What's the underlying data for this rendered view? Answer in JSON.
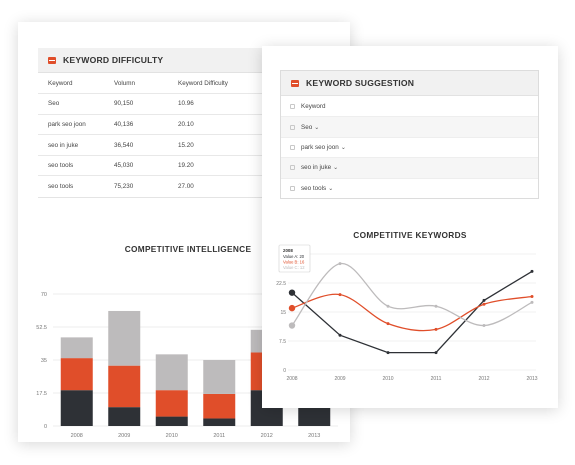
{
  "keyword_difficulty": {
    "title": "KEYWORD DIFFICULTY",
    "icon": "table-icon",
    "columns": [
      "Keyword",
      "Volumn",
      "Keyword Difficulty"
    ],
    "rows": [
      [
        "Seo",
        "90,150",
        "10.96"
      ],
      [
        "park seo joon",
        "40,136",
        "20.10"
      ],
      [
        "seo in juke",
        "36,540",
        "15.20"
      ],
      [
        "seo tools",
        "45,030",
        "19.20"
      ],
      [
        "seo tools",
        "75,230",
        "27.00"
      ]
    ]
  },
  "keyword_suggestion": {
    "title": "KEYWORD SUGGESTION",
    "icon": "table-icon",
    "items": [
      {
        "label": "Keyword",
        "chevron": false
      },
      {
        "label": "Seo",
        "chevron": true
      },
      {
        "label": "park seo joon",
        "chevron": true
      },
      {
        "label": "seo in juke",
        "chevron": true
      },
      {
        "label": "seo tools",
        "chevron": true
      }
    ],
    "chevron_glyph": "⌄"
  },
  "colors": {
    "dark": "#2e3136",
    "orange": "#e04e2a",
    "gray": "#bdbbbc",
    "accent": "#e04e2a"
  },
  "chart_data": [
    {
      "type": "bar",
      "stacked": true,
      "title": "COMPETITIVE INTELLIGENCE",
      "categories": [
        "2008",
        "2009",
        "2010",
        "2011",
        "2012",
        "2013"
      ],
      "yticks": [
        "0",
        "17.5",
        "35",
        "52.5",
        "70"
      ],
      "ylim": [
        0,
        70
      ],
      "series": [
        {
          "color": "#2e3136",
          "values": [
            19,
            10,
            5,
            4,
            19,
            19
          ]
        },
        {
          "color": "#e04e2a",
          "values": [
            17,
            22,
            14,
            13,
            20,
            20
          ]
        },
        {
          "color": "#bdbbbc",
          "values": [
            11,
            29,
            19,
            18,
            12,
            12
          ]
        }
      ],
      "grid": true
    },
    {
      "type": "line",
      "title": "COMPETITIVE KEYWORDS",
      "x": [
        "2008",
        "2009",
        "2010",
        "2011",
        "2012",
        "2013"
      ],
      "yticks": [
        "0",
        "7.5",
        "15",
        "22.5",
        "30"
      ],
      "ylim": [
        0,
        30
      ],
      "series": [
        {
          "name": "Value A",
          "color": "#2e3136",
          "values": [
            20,
            9,
            4.5,
            4.5,
            18,
            25.5
          ]
        },
        {
          "name": "Value B",
          "color": "#e04e2a",
          "values": [
            16,
            19.5,
            12,
            10.5,
            17,
            19
          ]
        },
        {
          "name": "Value C",
          "color": "#bdbbbc",
          "values": [
            11.5,
            27.5,
            16.5,
            16.5,
            11.5,
            17.5
          ]
        }
      ],
      "tooltip": {
        "header": "2008",
        "lines": [
          "Value A: 20",
          "Value B: 16",
          "Value C: 12"
        ]
      },
      "grid": true
    }
  ]
}
